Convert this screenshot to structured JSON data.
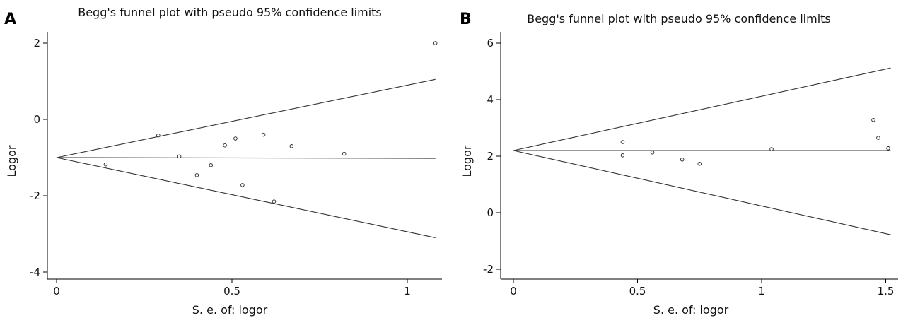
{
  "chart_data": [
    {
      "panel": "A",
      "type": "scatter",
      "title": "Begg's funnel plot with pseudo 95% confidence limits",
      "xlabel": "S. e. of: logor",
      "ylabel": "Logor",
      "xlim": [
        0,
        1.08
      ],
      "ylim": [
        -4.2,
        2.2
      ],
      "x_ticks": [
        0,
        0.5,
        1
      ],
      "x_tick_labels": [
        "0",
        "0.5",
        "1"
      ],
      "y_ticks": [
        -4,
        -2,
        0,
        2
      ],
      "y_tick_labels": [
        "-4",
        "-2",
        "0",
        "2"
      ],
      "pooled_estimate": -1.0,
      "upper_limit_end": 1.05,
      "center_line_end": -1.02,
      "lower_limit_end": -3.1,
      "points": [
        {
          "x": 0.14,
          "y": -1.18
        },
        {
          "x": 0.29,
          "y": -0.42
        },
        {
          "x": 0.35,
          "y": -0.97
        },
        {
          "x": 0.4,
          "y": -1.46
        },
        {
          "x": 0.44,
          "y": -1.2
        },
        {
          "x": 0.48,
          "y": -0.68
        },
        {
          "x": 0.51,
          "y": -0.5
        },
        {
          "x": 0.53,
          "y": -1.72
        },
        {
          "x": 0.59,
          "y": -0.4
        },
        {
          "x": 0.62,
          "y": -2.15
        },
        {
          "x": 0.67,
          "y": -0.7
        },
        {
          "x": 0.82,
          "y": -0.9
        },
        {
          "x": 1.08,
          "y": 2.0
        }
      ]
    },
    {
      "panel": "B",
      "type": "scatter",
      "title": "Begg's funnel plot with pseudo 95% confidence limits",
      "xlabel": "S. e. of: logor",
      "ylabel": "Logor",
      "xlim": [
        0,
        1.52
      ],
      "ylim": [
        -2.2,
        6.2
      ],
      "x_ticks": [
        0,
        0.5,
        1,
        1.5
      ],
      "x_tick_labels": [
        "0",
        "0.5",
        "1",
        "1.5"
      ],
      "y_ticks": [
        -2,
        0,
        2,
        4,
        6
      ],
      "y_tick_labels": [
        "-2",
        "0",
        "2",
        "4",
        "6"
      ],
      "pooled_estimate": 2.2,
      "upper_limit_end": 5.12,
      "center_line_end": 2.2,
      "lower_limit_end": -0.78,
      "points": [
        {
          "x": 0.44,
          "y": 2.5
        },
        {
          "x": 0.44,
          "y": 2.03
        },
        {
          "x": 0.56,
          "y": 2.13
        },
        {
          "x": 0.68,
          "y": 1.88
        },
        {
          "x": 0.75,
          "y": 1.73
        },
        {
          "x": 1.04,
          "y": 2.25
        },
        {
          "x": 1.45,
          "y": 3.28
        },
        {
          "x": 1.47,
          "y": 2.65
        },
        {
          "x": 1.51,
          "y": 2.28
        }
      ]
    }
  ]
}
